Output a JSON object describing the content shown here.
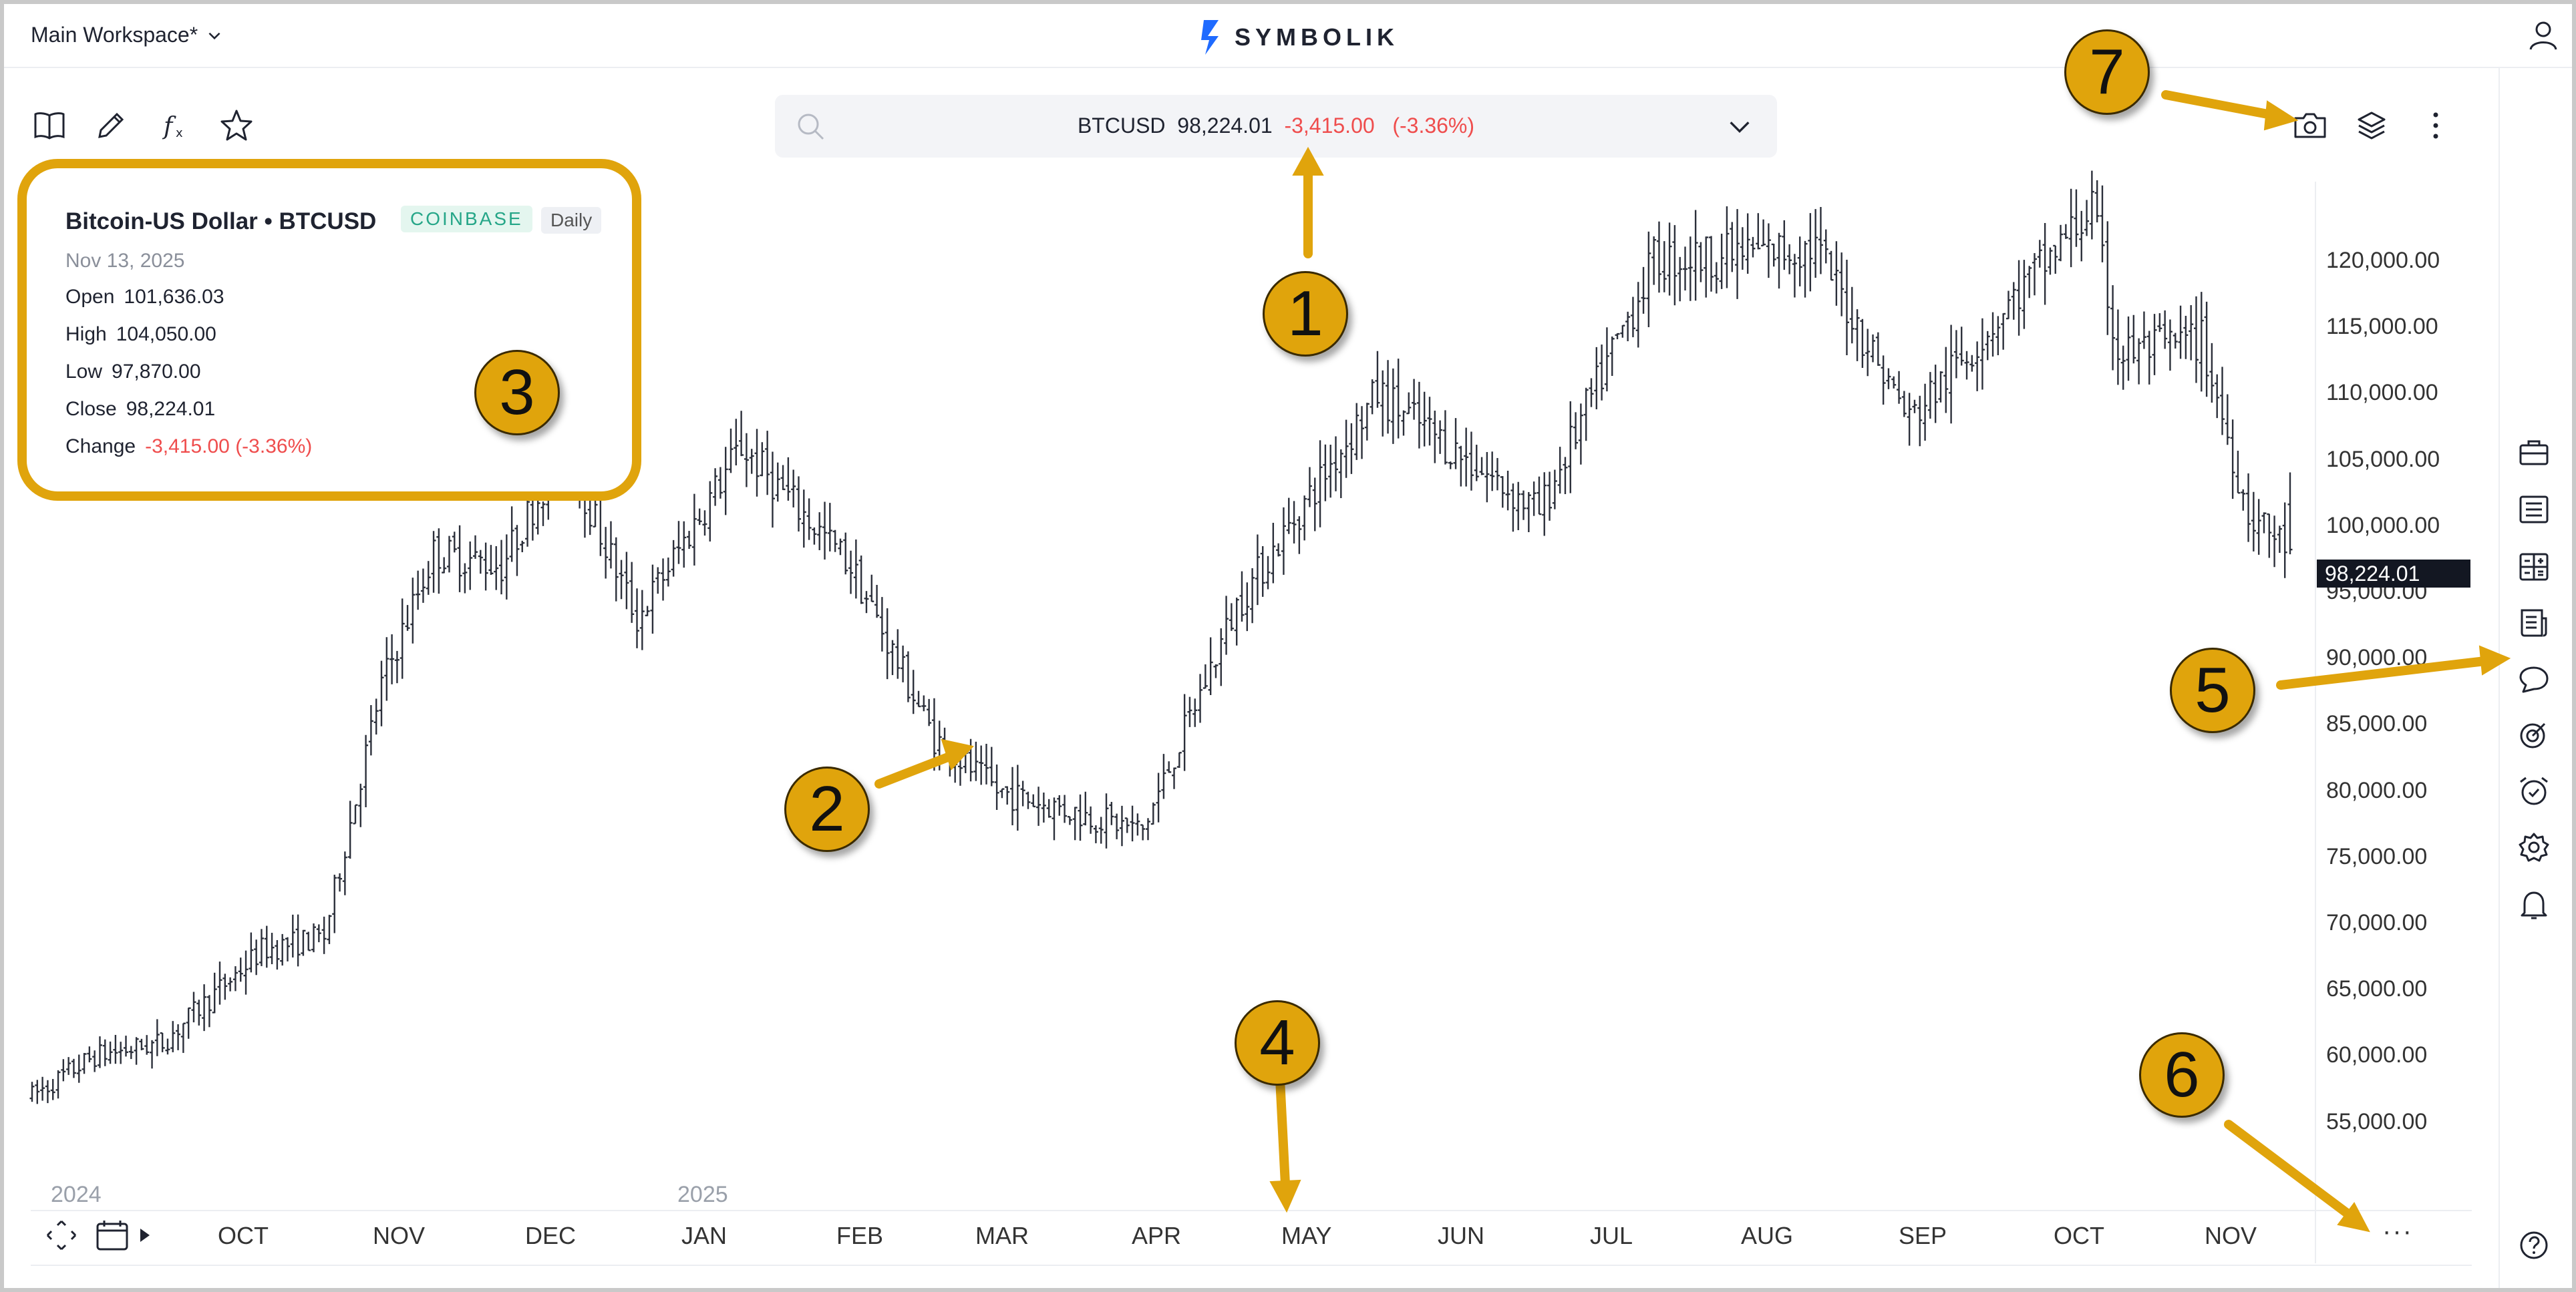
{
  "header": {
    "workspace_label": "Main Workspace*",
    "logo_text": "SYMBOLIK"
  },
  "search": {
    "symbol": "BTCUSD",
    "price": "98,224.01",
    "change": "-3,415.00",
    "change_pct": "(-3.36%)"
  },
  "info": {
    "title": "Bitcoin-US Dollar • BTCUSD",
    "exchange": "COINBASE",
    "timeframe": "Daily",
    "date": "Nov 13, 2025",
    "open_label": "Open",
    "open": "101,636.03",
    "high_label": "High",
    "high": "104,050.00",
    "low_label": "Low",
    "low": "97,870.00",
    "close_label": "Close",
    "close": "98,224.01",
    "change_label": "Change",
    "change": "-3,415.00 (-3.36%)"
  },
  "price_axis": {
    "labels": [
      "120,000.00",
      "115,000.00",
      "110,000.00",
      "105,000.00",
      "100,000.00",
      "95,000.00",
      "90,000.00",
      "85,000.00",
      "80,000.00",
      "75,000.00",
      "70,000.00",
      "65,000.00",
      "60,000.00",
      "55,000.00"
    ],
    "last_price": "98,224.01"
  },
  "time_axis": {
    "months": [
      "OCT",
      "NOV",
      "DEC",
      "JAN",
      "FEB",
      "MAR",
      "APR",
      "MAY",
      "JUN",
      "JUL",
      "AUG",
      "SEP",
      "OCT",
      "NOV"
    ],
    "years": [
      "2024",
      "2025"
    ],
    "more": "···"
  },
  "annotations": [
    "1",
    "2",
    "3",
    "4",
    "5",
    "6",
    "7"
  ],
  "colors": {
    "accent": "#e0a40c",
    "negative": "#ef4d4d",
    "exchange_badge": "#26a688",
    "bars": "#2b2f3a",
    "logo": "#1f6bff"
  },
  "chart_data": {
    "type": "bar",
    "style": "ohlc",
    "timeframe": "Daily",
    "x_start": "2024-09-06",
    "x_end": "2025-11-13",
    "ylim": [
      51000,
      126000
    ],
    "anchors": [
      {
        "date": "2024-09-06",
        "close": 57000
      },
      {
        "date": "2024-09-18",
        "close": 60000
      },
      {
        "date": "2024-10-01",
        "close": 61000
      },
      {
        "date": "2024-10-20",
        "close": 68000
      },
      {
        "date": "2024-11-01",
        "close": 69000
      },
      {
        "date": "2024-11-12",
        "close": 88000
      },
      {
        "date": "2024-11-22",
        "close": 98000
      },
      {
        "date": "2024-12-05",
        "close": 97000
      },
      {
        "date": "2024-12-17",
        "close": 106000
      },
      {
        "date": "2024-12-31",
        "close": 93000
      },
      {
        "date": "2025-01-20",
        "close": 106000
      },
      {
        "date": "2025-02-10",
        "close": 97000
      },
      {
        "date": "2025-02-26",
        "close": 84000
      },
      {
        "date": "2025-03-10",
        "close": 80000
      },
      {
        "date": "2025-04-07",
        "close": 77000
      },
      {
        "date": "2025-04-25",
        "close": 94000
      },
      {
        "date": "2025-05-22",
        "close": 110000
      },
      {
        "date": "2025-06-22",
        "close": 101000
      },
      {
        "date": "2025-07-14",
        "close": 120000
      },
      {
        "date": "2025-08-14",
        "close": 121000
      },
      {
        "date": "2025-09-01",
        "close": 108000
      },
      {
        "date": "2025-10-06",
        "close": 124000
      },
      {
        "date": "2025-10-11",
        "close": 113000
      },
      {
        "date": "2025-10-27",
        "close": 114000
      },
      {
        "date": "2025-11-05",
        "close": 101000
      },
      {
        "date": "2025-11-13",
        "close": 98224
      }
    ],
    "last": {
      "date": "Nov 13, 2025",
      "open": 101636.03,
      "high": 104050.0,
      "low": 97870.0,
      "close": 98224.01
    }
  }
}
